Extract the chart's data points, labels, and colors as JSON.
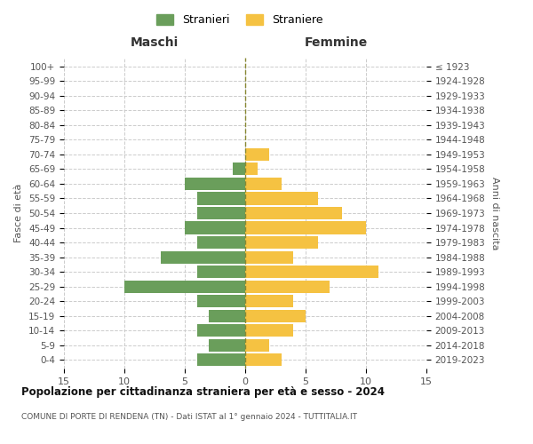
{
  "age_groups": [
    "0-4",
    "5-9",
    "10-14",
    "15-19",
    "20-24",
    "25-29",
    "30-34",
    "35-39",
    "40-44",
    "45-49",
    "50-54",
    "55-59",
    "60-64",
    "65-69",
    "70-74",
    "75-79",
    "80-84",
    "85-89",
    "90-94",
    "95-99",
    "100+"
  ],
  "birth_years": [
    "2019-2023",
    "2014-2018",
    "2009-2013",
    "2004-2008",
    "1999-2003",
    "1994-1998",
    "1989-1993",
    "1984-1988",
    "1979-1983",
    "1974-1978",
    "1969-1973",
    "1964-1968",
    "1959-1963",
    "1954-1958",
    "1949-1953",
    "1944-1948",
    "1939-1943",
    "1934-1938",
    "1929-1933",
    "1924-1928",
    "≤ 1923"
  ],
  "males": [
    4,
    3,
    4,
    3,
    4,
    10,
    4,
    7,
    4,
    5,
    4,
    4,
    5,
    1,
    0,
    0,
    0,
    0,
    0,
    0,
    0
  ],
  "females": [
    3,
    2,
    4,
    5,
    4,
    7,
    11,
    4,
    6,
    10,
    8,
    6,
    3,
    1,
    2,
    0,
    0,
    0,
    0,
    0,
    0
  ],
  "male_color": "#6a9e5b",
  "female_color": "#f5c242",
  "male_label": "Stranieri",
  "female_label": "Straniere",
  "title": "Popolazione per cittadinanza straniera per età e sesso - 2024",
  "subtitle": "COMUNE DI PORTE DI RENDENA (TN) - Dati ISTAT al 1° gennaio 2024 - TUTTITALIA.IT",
  "xlabel_left": "Maschi",
  "xlabel_right": "Femmine",
  "ylabel_left": "Fasce di età",
  "ylabel_right": "Anni di nascita",
  "xlim": 15,
  "background_color": "#ffffff",
  "grid_color": "#cccccc",
  "bar_height": 0.85
}
